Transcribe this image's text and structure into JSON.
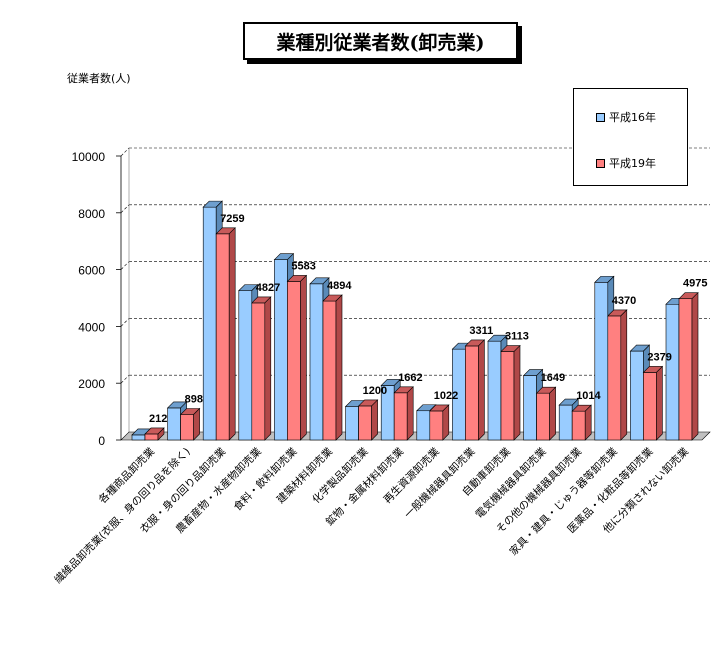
{
  "chart_data": {
    "type": "bar",
    "title": "業種別従業者数(卸売業)",
    "ylabel": "従業者数(人)",
    "xlabel": "",
    "ylim": [
      0,
      10000
    ],
    "yticks": [
      0,
      2000,
      4000,
      6000,
      8000,
      10000
    ],
    "grid": true,
    "legend_position": "top-right",
    "categories": [
      "各種商品卸売業",
      "繊維品卸売業(衣服、身の回り品を除く)",
      "衣服・身の回り品卸売業",
      "農畜産物・水産物卸売業",
      "食料・飲料卸売業",
      "建築材料卸売業",
      "化学製品卸売業",
      "鉱物・金属材料卸売業",
      "再生資源卸売業",
      "一般機械器具卸売業",
      "自動車卸売業",
      "電気機械器具卸売業",
      "その他の機械器具卸売業",
      "家具・建具・じゅう器等卸売業",
      "医薬品・化粧品等卸売業",
      "他に分類されない卸売業"
    ],
    "series": [
      {
        "name": "平成16年",
        "color": "#99ccff",
        "values": [
          180,
          1130,
          8200,
          5260,
          6350,
          5500,
          1180,
          1920,
          1030,
          3200,
          3480,
          2270,
          1230,
          5550,
          3130,
          4780
        ]
      },
      {
        "name": "平成19年",
        "color": "#ff8080",
        "values": [
          212,
          898,
          7259,
          4827,
          5583,
          4894,
          1200,
          1662,
          1022,
          3311,
          3113,
          1649,
          1014,
          4370,
          2379,
          4975
        ]
      }
    ],
    "data_labels": [
      "212",
      "898",
      "7259",
      "4827",
      "5583",
      "4894",
      "1200",
      "1662",
      "1022",
      "3311",
      "3113",
      "1649",
      "1014",
      "4370",
      "2379",
      "4975"
    ]
  }
}
